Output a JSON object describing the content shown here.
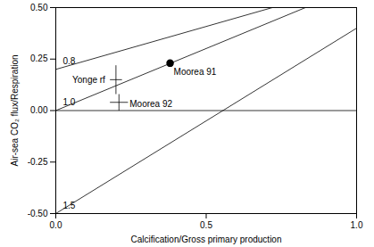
{
  "chart_data": {
    "type": "scatter",
    "x_label": "Calcification/Gross primary production",
    "y_label": "Air-sea CO₂ flux/Respiration",
    "xlim": [
      0,
      1
    ],
    "xticks": [
      {
        "value": 0,
        "label": "0.0"
      },
      0.5,
      {
        "value": 1,
        "label": "1.0"
      }
    ],
    "ylim": [
      -0.5,
      0.5
    ],
    "yticks": [
      {
        "value": -0.5,
        "label": "-0.50"
      },
      {
        "value": -0.25,
        "label": "-0.25"
      },
      {
        "value": 0,
        "label": "0.00"
      },
      {
        "value": 0.25,
        "label": "0.25"
      },
      {
        "value": 0.5,
        "label": "0.50"
      }
    ],
    "reference_line": 0,
    "lines": [
      {
        "name": "0.8",
        "x": [
          0,
          0.72
        ],
        "y": [
          0.2,
          0.5
        ]
      },
      {
        "name": "1.0",
        "x": [
          0,
          0.83
        ],
        "y": [
          0,
          0.5
        ]
      },
      {
        "name": "1.5",
        "x": [
          0,
          1
        ],
        "y": [
          -0.5,
          0.4
        ]
      }
    ],
    "points": [
      {
        "label": "Yonge rf",
        "x": 0.2,
        "y": 0.15,
        "x_error": 0.02,
        "y_error": 0.07,
        "marker": "none"
      },
      {
        "label": "Moorea 91",
        "x": 0.38,
        "y": 0.23,
        "marker": "circle"
      },
      {
        "label": "Moorea 92",
        "x": 0.21,
        "y": 0.04,
        "x_error": 0.03,
        "y_error": 0.04,
        "marker": "none"
      }
    ],
    "color": "#000000"
  }
}
